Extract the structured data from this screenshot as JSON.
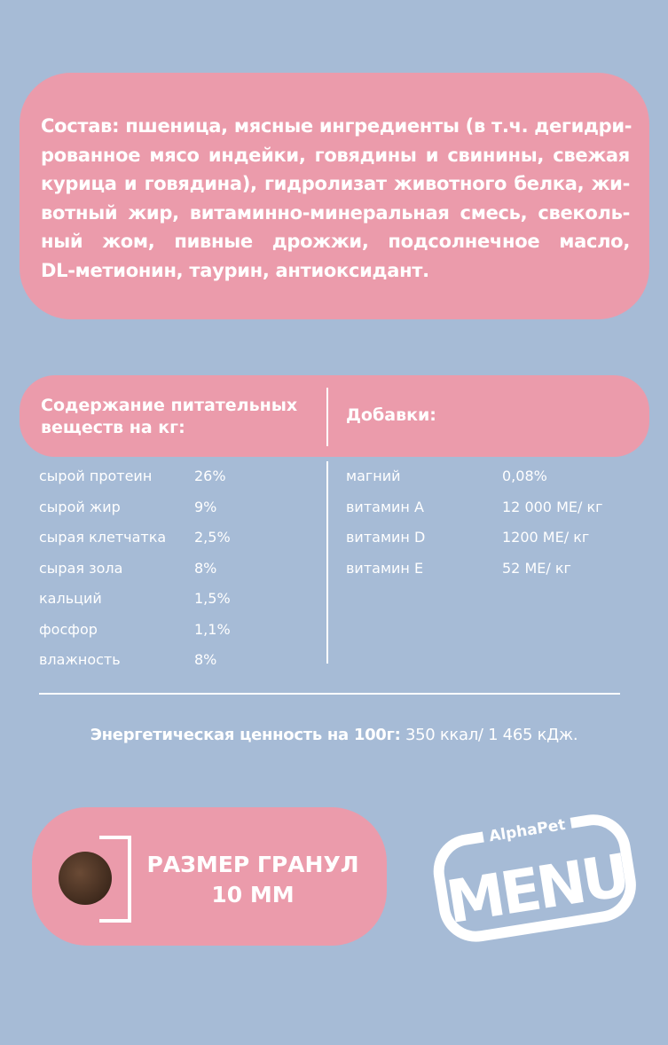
{
  "composition": {
    "lines": [
      "Состав: пшеница, мясные ингредиенты (в т.ч. дегидри-",
      "рованное мясо индейки, говядины и свинины, свежая",
      "курица и говядина), гидролизат животного белка, жи-",
      "вотный жир, витаминно-минеральная смесь, свеколь-",
      "ный жом, пивные дрожжи, подсолнечное масло,",
      "DL-метионин, таурин, антиоксидант."
    ]
  },
  "nutrients": {
    "title": "Содержание питательных веществ на кг:",
    "rows": [
      {
        "name": "сырой протеин",
        "value": "26%"
      },
      {
        "name": "сырой жир",
        "value": "9%"
      },
      {
        "name": "сырая клетчатка",
        "value": "2,5%"
      },
      {
        "name": "сырая зола",
        "value": "8%"
      },
      {
        "name": "кальций",
        "value": "1,5%"
      },
      {
        "name": "фосфор",
        "value": "1,1%"
      },
      {
        "name": "влажность",
        "value": "8%"
      }
    ]
  },
  "additives": {
    "title": "Добавки:",
    "rows": [
      {
        "name": "магний",
        "value": "0,08%"
      },
      {
        "name": "витамин А",
        "value": "12 000 МЕ/ кг"
      },
      {
        "name": "витамин D",
        "value": "1200 МЕ/ кг"
      },
      {
        "name": "витамин E",
        "value": "52 МЕ/ кг"
      }
    ]
  },
  "energy": {
    "label": "Энергетическая ценность на 100г:",
    "value": " 350 ккал/ 1 465 кДж."
  },
  "granule": {
    "line1": "РАЗМЕР ГРАНУЛ",
    "line2": "10 ММ"
  },
  "logo": {
    "brand": "AlphaPet",
    "name": "MENU"
  },
  "colors": {
    "background": "#a6bbd6",
    "accent": "#eb9bab"
  }
}
